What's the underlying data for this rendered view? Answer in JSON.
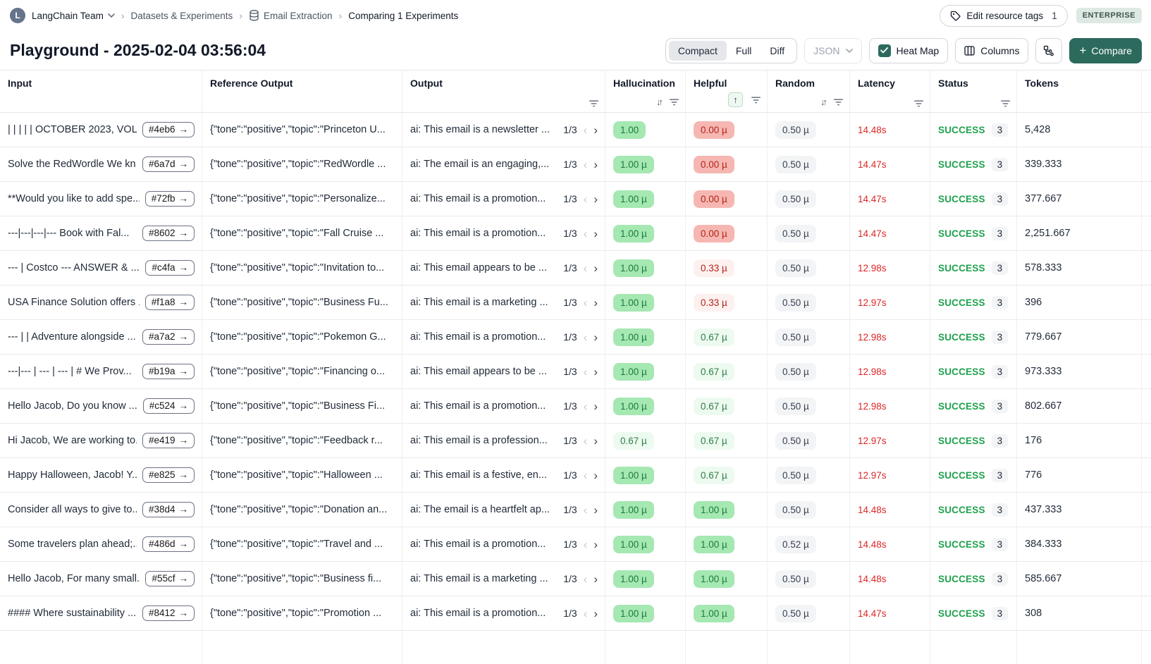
{
  "colors": {
    "accent": "#2d6a5e",
    "success_text": "#1ea24d",
    "latency_text": "#dc2626",
    "badge_green_strong": "#a5e8b2",
    "badge_green_light": "#edfaf0",
    "badge_red_strong": "#f6b7b2",
    "badge_red_light": "#fdf1f0",
    "badge_gray": "#f3f4f6",
    "enterprise_badge_bg": "#dfe9e4"
  },
  "glyphs": {
    "sort": "↓↑",
    "sort_asc": "↑",
    "pager_prev": "‹",
    "pager_next": "›",
    "id_arrow": "→",
    "plus": "+"
  },
  "breadcrumb": {
    "team_initial": "L",
    "team": "LangChain Team",
    "dataset_section": "Datasets & Experiments",
    "dataset_name": "Email Extraction",
    "current": "Comparing 1 Experiments"
  },
  "topbar": {
    "edit_tags_label": "Edit resource tags",
    "edit_tags_count": "1",
    "plan_badge": "ENTERPRISE"
  },
  "header": {
    "title": "Playground - 2025-02-04 03:56:04",
    "view_modes": [
      "Compact",
      "Full",
      "Diff"
    ],
    "active_view": "Compact",
    "format_label": "JSON",
    "heatmap_label": "Heat Map",
    "heatmap_checked": true,
    "columns_label": "Columns",
    "compare_label": "Compare"
  },
  "table": {
    "columns": [
      {
        "label": "Input"
      },
      {
        "label": "Reference Output"
      },
      {
        "label": "Output"
      },
      {
        "label": "Hallucination"
      },
      {
        "label": "Helpful"
      },
      {
        "label": "Random"
      },
      {
        "label": "Latency"
      },
      {
        "label": "Status"
      },
      {
        "label": "Tokens"
      }
    ],
    "rows": [
      {
        "input": "| | | | | OCTOBER 2023, VOL...",
        "id": "#4eb6",
        "ref": "{\"tone\":\"positive\",\"topic\":\"Princeton U...",
        "output": "ai: This email is a newsletter ...",
        "pager": "1/3",
        "hallucination": {
          "value": "1.00",
          "style": "green-strong"
        },
        "helpful": {
          "value": "0.00 µ",
          "style": "red-strong"
        },
        "random": "0.50 µ",
        "latency": "14.48s",
        "status": "SUCCESS",
        "status_count": "3",
        "tokens": "5,428"
      },
      {
        "input": "Solve the RedWordle We kn...",
        "id": "#6a7d",
        "ref": "{\"tone\":\"positive\",\"topic\":\"RedWordle ...",
        "output": "ai: The email is an engaging,...",
        "pager": "1/3",
        "hallucination": {
          "value": "1.00 µ",
          "style": "green-strong"
        },
        "helpful": {
          "value": "0.00 µ",
          "style": "red-strong"
        },
        "random": "0.50 µ",
        "latency": "14.47s",
        "status": "SUCCESS",
        "status_count": "3",
        "tokens": "339.333"
      },
      {
        "input": "**Would you like to add spe...",
        "id": "#72fb",
        "ref": "{\"tone\":\"positive\",\"topic\":\"Personalize...",
        "output": "ai: This email is a promotion...",
        "pager": "1/3",
        "hallucination": {
          "value": "1.00 µ",
          "style": "green-strong"
        },
        "helpful": {
          "value": "0.00 µ",
          "style": "red-strong"
        },
        "random": "0.50 µ",
        "latency": "14.47s",
        "status": "SUCCESS",
        "status_count": "3",
        "tokens": "377.667"
      },
      {
        "input": "---|---|---|--- Book with Fal...",
        "id": "#8602",
        "ref": "{\"tone\":\"positive\",\"topic\":\"Fall Cruise ...",
        "output": "ai: This email is a promotion...",
        "pager": "1/3",
        "hallucination": {
          "value": "1.00 µ",
          "style": "green-strong"
        },
        "helpful": {
          "value": "0.00 µ",
          "style": "red-strong"
        },
        "random": "0.50 µ",
        "latency": "14.47s",
        "status": "SUCCESS",
        "status_count": "3",
        "tokens": "2,251.667"
      },
      {
        "input": "--- | Costco --- ANSWER & ...",
        "id": "#c4fa",
        "ref": "{\"tone\":\"positive\",\"topic\":\"Invitation to...",
        "output": "ai: This email appears to be ...",
        "pager": "1/3",
        "hallucination": {
          "value": "1.00 µ",
          "style": "green-strong"
        },
        "helpful": {
          "value": "0.33 µ",
          "style": "red-light"
        },
        "random": "0.50 µ",
        "latency": "12.98s",
        "status": "SUCCESS",
        "status_count": "3",
        "tokens": "578.333"
      },
      {
        "input": "USA Finance Solution offers ...",
        "id": "#f1a8",
        "ref": "{\"tone\":\"positive\",\"topic\":\"Business Fu...",
        "output": "ai: This email is a marketing ...",
        "pager": "1/3",
        "hallucination": {
          "value": "1.00 µ",
          "style": "green-strong"
        },
        "helpful": {
          "value": "0.33 µ",
          "style": "red-light"
        },
        "random": "0.50 µ",
        "latency": "12.97s",
        "status": "SUCCESS",
        "status_count": "3",
        "tokens": "396"
      },
      {
        "input": "--- | | Adventure alongside ...",
        "id": "#a7a2",
        "ref": "{\"tone\":\"positive\",\"topic\":\"Pokemon G...",
        "output": "ai: This email is a promotion...",
        "pager": "1/3",
        "hallucination": {
          "value": "1.00 µ",
          "style": "green-strong"
        },
        "helpful": {
          "value": "0.67 µ",
          "style": "green-light"
        },
        "random": "0.50 µ",
        "latency": "12.98s",
        "status": "SUCCESS",
        "status_count": "3",
        "tokens": "779.667"
      },
      {
        "input": "---|--- | --- | --- | # We Prov...",
        "id": "#b19a",
        "ref": "{\"tone\":\"positive\",\"topic\":\"Financing o...",
        "output": "ai: This email appears to be ...",
        "pager": "1/3",
        "hallucination": {
          "value": "1.00 µ",
          "style": "green-strong"
        },
        "helpful": {
          "value": "0.67 µ",
          "style": "green-light"
        },
        "random": "0.50 µ",
        "latency": "12.98s",
        "status": "SUCCESS",
        "status_count": "3",
        "tokens": "973.333"
      },
      {
        "input": "Hello Jacob, Do you know ...",
        "id": "#c524",
        "ref": "{\"tone\":\"positive\",\"topic\":\"Business Fi...",
        "output": "ai: This email is a promotion...",
        "pager": "1/3",
        "hallucination": {
          "value": "1.00 µ",
          "style": "green-strong"
        },
        "helpful": {
          "value": "0.67 µ",
          "style": "green-light"
        },
        "random": "0.50 µ",
        "latency": "12.98s",
        "status": "SUCCESS",
        "status_count": "3",
        "tokens": "802.667"
      },
      {
        "input": "Hi Jacob, We are working to...",
        "id": "#e419",
        "ref": "{\"tone\":\"positive\",\"topic\":\"Feedback r...",
        "output": "ai: This email is a profession...",
        "pager": "1/3",
        "hallucination": {
          "value": "0.67 µ",
          "style": "green-light"
        },
        "helpful": {
          "value": "0.67 µ",
          "style": "green-light"
        },
        "random": "0.50 µ",
        "latency": "12.97s",
        "status": "SUCCESS",
        "status_count": "3",
        "tokens": "176"
      },
      {
        "input": "Happy Halloween, Jacob! Y...",
        "id": "#e825",
        "ref": "{\"tone\":\"positive\",\"topic\":\"Halloween ...",
        "output": "ai: This email is a festive, en...",
        "pager": "1/3",
        "hallucination": {
          "value": "1.00 µ",
          "style": "green-strong"
        },
        "helpful": {
          "value": "0.67 µ",
          "style": "green-light"
        },
        "random": "0.50 µ",
        "latency": "12.97s",
        "status": "SUCCESS",
        "status_count": "3",
        "tokens": "776"
      },
      {
        "input": "Consider all ways to give to...",
        "id": "#38d4",
        "ref": "{\"tone\":\"positive\",\"topic\":\"Donation an...",
        "output": "ai: The email is a heartfelt ap...",
        "pager": "1/3",
        "hallucination": {
          "value": "1.00 µ",
          "style": "green-strong"
        },
        "helpful": {
          "value": "1.00 µ",
          "style": "green-strong"
        },
        "random": "0.50 µ",
        "latency": "14.48s",
        "status": "SUCCESS",
        "status_count": "3",
        "tokens": "437.333"
      },
      {
        "input": "Some travelers plan ahead;...",
        "id": "#486d",
        "ref": "{\"tone\":\"positive\",\"topic\":\"Travel and ...",
        "output": "ai: This email is a promotion...",
        "pager": "1/3",
        "hallucination": {
          "value": "1.00 µ",
          "style": "green-strong"
        },
        "helpful": {
          "value": "1.00 µ",
          "style": "green-strong"
        },
        "random": "0.52 µ",
        "latency": "14.48s",
        "status": "SUCCESS",
        "status_count": "3",
        "tokens": "384.333"
      },
      {
        "input": "Hello Jacob, For many small...",
        "id": "#55cf",
        "ref": "{\"tone\":\"positive\",\"topic\":\"Business fi...",
        "output": "ai: This email is a marketing ...",
        "pager": "1/3",
        "hallucination": {
          "value": "1.00 µ",
          "style": "green-strong"
        },
        "helpful": {
          "value": "1.00 µ",
          "style": "green-strong"
        },
        "random": "0.50 µ",
        "latency": "14.48s",
        "status": "SUCCESS",
        "status_count": "3",
        "tokens": "585.667"
      },
      {
        "input": "#### Where sustainability ...",
        "id": "#8412",
        "ref": "{\"tone\":\"positive\",\"topic\":\"Promotion ...",
        "output": "ai: This email is a promotion...",
        "pager": "1/3",
        "hallucination": {
          "value": "1.00 µ",
          "style": "green-strong"
        },
        "helpful": {
          "value": "1.00 µ",
          "style": "green-strong"
        },
        "random": "0.50 µ",
        "latency": "14.47s",
        "status": "SUCCESS",
        "status_count": "3",
        "tokens": "308"
      }
    ]
  }
}
